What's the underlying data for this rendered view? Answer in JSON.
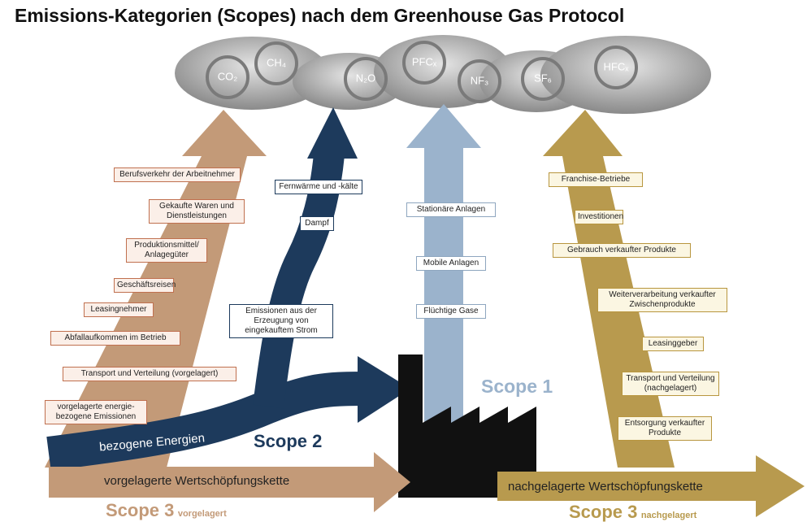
{
  "title": "Emissions-Kategorien (Scopes)  nach dem Greenhouse Gas Protocol",
  "gases": [
    "CO₂",
    "CH₄",
    "N₂O",
    "PFCₓ",
    "NF₃",
    "SF₆",
    "HFCₓ"
  ],
  "scope3_upstream": {
    "label": "Scope 3",
    "qualifier": "vorgelagert",
    "chain": "vorgelagerte Wertschöpfungskette",
    "categories": [
      "Berufsverkehr der Arbeitnehmer",
      "Gekaufte Waren und Dienstleistungen",
      "Produktionsmittel/ Anlagegüter",
      "Geschäftsreisen",
      "Leasingnehmer",
      "Abfallaufkommen im Betrieb",
      "Transport und Verteilung (vorgelagert)",
      "vorgelagerte energie-bezogene Emissionen"
    ]
  },
  "scope2": {
    "label": "Scope 2",
    "source": "bezogene Energien",
    "categories": [
      "Fernwärme und -kälte",
      "Dampf",
      "Emissionen aus der Erzeugung von eingekauftem Strom"
    ]
  },
  "scope1": {
    "label": "Scope 1",
    "categories": [
      "Stationäre Anlagen",
      "Mobile Anlagen",
      "Flüchtige Gase"
    ]
  },
  "scope3_downstream": {
    "label": "Scope 3",
    "qualifier": "nachgelagert",
    "chain": "nachgelagerte Wertschöpfungskette",
    "categories": [
      "Franchise-Betriebe",
      "Investitionen",
      "Gebrauch verkaufter Produkte",
      "Weiterverarbeitung verkaufter Zwischenprodukte",
      "Leasinggeber",
      "Transport und Verteilung (nachgelagert)",
      "Entsorgung verkaufter Produkte"
    ]
  }
}
